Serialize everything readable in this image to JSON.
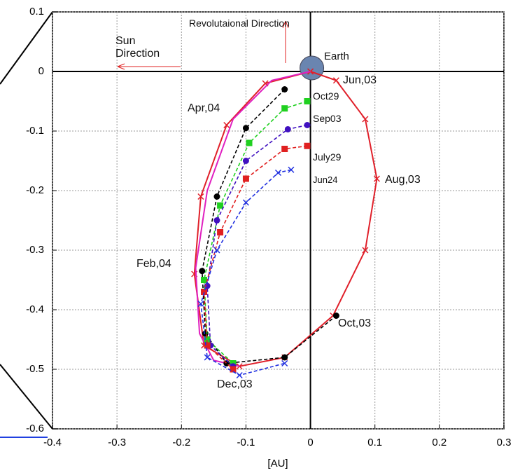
{
  "chart_data": {
    "type": "line",
    "xlabel": "[AU]",
    "xlim": [
      -0.4,
      0.3
    ],
    "ylim": [
      -0.6,
      0.1
    ],
    "xticks": [
      -0.4,
      -0.3,
      -0.2,
      -0.1,
      0,
      0.1,
      0.2,
      0.3
    ],
    "yticks": [
      -0.6,
      -0.5,
      -0.4,
      -0.3,
      -0.2,
      -0.1,
      0,
      0.1
    ],
    "grid": true,
    "annotations": [
      "Sun Direction",
      "Revolutaional Direction",
      "Earth",
      "Jun,03",
      "Oct29",
      "Sep03",
      "July29",
      "Jun24",
      "Apr,04",
      "Aug,03",
      "Feb,04",
      "Oct,03",
      "Dec,03"
    ],
    "series": [
      {
        "color": "#e0202a",
        "style": "solid",
        "marker": "x",
        "x": [
          0,
          0.04,
          0.085,
          0.103,
          0.085,
          0.035,
          -0.04,
          -0.11,
          -0.165,
          -0.18,
          -0.17,
          -0.13,
          -0.07,
          0
        ],
        "y": [
          0,
          -0.015,
          -0.08,
          -0.18,
          -0.3,
          -0.41,
          -0.48,
          -0.495,
          -0.46,
          -0.34,
          -0.21,
          -0.09,
          -0.02,
          0
        ]
      },
      {
        "color": "#e020c0",
        "style": "solid",
        "marker": "none",
        "x": [
          0,
          -0.06,
          -0.12,
          -0.16,
          -0.178,
          -0.172,
          -0.15,
          -0.11
        ],
        "y": [
          0,
          -0.015,
          -0.08,
          -0.2,
          -0.33,
          -0.44,
          -0.485,
          -0.495
        ]
      },
      {
        "color": "#000000",
        "style": "dashed",
        "marker": "circle",
        "x": [
          -0.04,
          -0.1,
          -0.145,
          -0.168,
          -0.163,
          -0.13,
          -0.04,
          0.04
        ],
        "y": [
          -0.03,
          -0.095,
          -0.21,
          -0.335,
          -0.44,
          -0.49,
          -0.48,
          -0.41
        ]
      },
      {
        "color": "#20d020",
        "style": "dashed",
        "marker": "square",
        "x": [
          -0.005,
          -0.04,
          -0.095,
          -0.14,
          -0.165,
          -0.16,
          -0.12
        ],
        "y": [
          -0.05,
          -0.062,
          -0.12,
          -0.225,
          -0.35,
          -0.45,
          -0.49
        ]
      },
      {
        "color": "#4010c0",
        "style": "dashed",
        "marker": "circle",
        "x": [
          -0.005,
          -0.035,
          -0.1,
          -0.145,
          -0.16,
          -0.155,
          -0.12
        ],
        "y": [
          -0.09,
          -0.097,
          -0.15,
          -0.25,
          -0.36,
          -0.46,
          -0.495
        ]
      },
      {
        "color": "#e02020",
        "style": "dashed",
        "marker": "square",
        "x": [
          -0.005,
          -0.04,
          -0.1,
          -0.14,
          -0.165,
          -0.16,
          -0.12
        ],
        "y": [
          -0.125,
          -0.13,
          -0.18,
          -0.27,
          -0.37,
          -0.46,
          -0.5
        ]
      },
      {
        "color": "#2030e0",
        "style": "dashed",
        "marker": "x",
        "x": [
          -0.03,
          -0.05,
          -0.1,
          -0.145,
          -0.17,
          -0.16,
          -0.11,
          -0.04
        ],
        "y": [
          -0.165,
          -0.17,
          -0.22,
          -0.3,
          -0.39,
          -0.48,
          -0.51,
          -0.49
        ]
      }
    ]
  }
}
